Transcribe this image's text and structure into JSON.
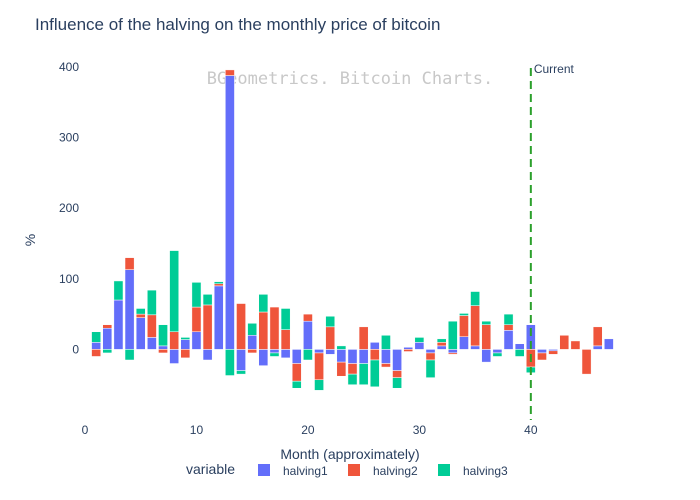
{
  "chart_data": {
    "type": "bar",
    "barmode": "relative",
    "title": "Influence of the halving on the monthly price of bitcoin",
    "xlabel": "Month (approximately)",
    "ylabel": "%",
    "xlim": [
      0,
      48
    ],
    "ylim": [
      -100,
      410
    ],
    "xticks": [
      0,
      10,
      20,
      30,
      40
    ],
    "yticks": [
      0,
      100,
      200,
      300,
      400
    ],
    "watermark": "BGeometrics. Bitcoin Charts.",
    "legend": {
      "title": "variable",
      "position": "bottom"
    },
    "colors": {
      "halving1": "#636efa",
      "halving2": "#ef553b",
      "halving3": "#00cc96",
      "current_line": "#2ca02c"
    },
    "current_marker": {
      "x": 40,
      "label": "Current"
    },
    "x": [
      1,
      2,
      3,
      4,
      5,
      6,
      7,
      8,
      9,
      10,
      11,
      12,
      13,
      14,
      15,
      16,
      17,
      18,
      19,
      20,
      21,
      22,
      23,
      24,
      25,
      26,
      27,
      28,
      29,
      30,
      31,
      32,
      33,
      34,
      35,
      36,
      37,
      38,
      39,
      40,
      41,
      42,
      43,
      44,
      45,
      46,
      47
    ],
    "series": [
      {
        "name": "halving1",
        "values": [
          10,
          30,
          70,
          113,
          45,
          17,
          5,
          -20,
          14,
          25,
          -15,
          90,
          388,
          -30,
          20,
          -23,
          -5,
          -12,
          -20,
          40,
          -5,
          -7,
          -18,
          -20,
          -20,
          10,
          -20,
          -30,
          3,
          10,
          -5,
          5,
          -5,
          18,
          5,
          -18,
          -5,
          27,
          8,
          35,
          -5,
          -2,
          0,
          0,
          0,
          5,
          15
        ]
      },
      {
        "name": "halving2",
        "values": [
          -10,
          5,
          0,
          17,
          5,
          32,
          -5,
          25,
          -12,
          35,
          63,
          3,
          8,
          65,
          -5,
          53,
          60,
          28,
          -25,
          10,
          -38,
          32,
          -20,
          -15,
          32,
          -15,
          -5,
          -10,
          -3,
          0,
          -10,
          5,
          -2,
          30,
          57,
          35,
          0,
          8,
          0,
          -25,
          -10,
          -5,
          20,
          12,
          -35,
          27,
          0
        ]
      },
      {
        "name": "halving3",
        "values": [
          15,
          -5,
          27,
          -15,
          8,
          35,
          30,
          115,
          3,
          35,
          15,
          3,
          -37,
          -5,
          17,
          25,
          -5,
          30,
          -10,
          -15,
          -15,
          15,
          5,
          -15,
          -30,
          -38,
          20,
          -15,
          0,
          7,
          -25,
          5,
          40,
          3,
          20,
          5,
          -5,
          15,
          -10,
          -8,
          0,
          0,
          0,
          0,
          0,
          0,
          0
        ]
      }
    ]
  }
}
